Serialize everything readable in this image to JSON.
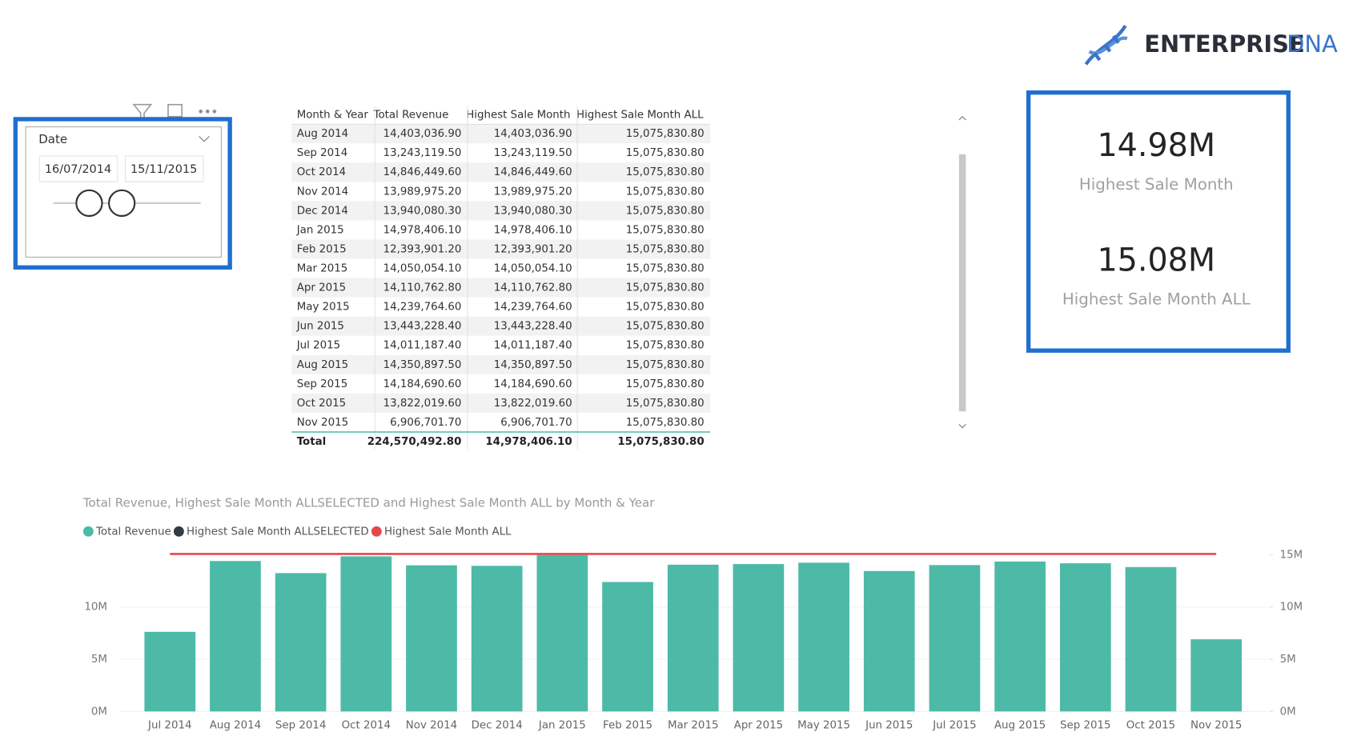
{
  "logo": {
    "word1": "ENTERPRISE",
    "word2": "DNA"
  },
  "slicer": {
    "title": "Date",
    "start": "16/07/2014",
    "end": "15/11/2015"
  },
  "table": {
    "columns": [
      "Month & Year",
      "Total Revenue",
      "Highest Sale Month",
      "Highest Sale Month ALL"
    ],
    "rows": [
      [
        "Aug 2014",
        "14,403,036.90",
        "14,403,036.90",
        "15,075,830.80"
      ],
      [
        "Sep 2014",
        "13,243,119.50",
        "13,243,119.50",
        "15,075,830.80"
      ],
      [
        "Oct 2014",
        "14,846,449.60",
        "14,846,449.60",
        "15,075,830.80"
      ],
      [
        "Nov 2014",
        "13,989,975.20",
        "13,989,975.20",
        "15,075,830.80"
      ],
      [
        "Dec 2014",
        "13,940,080.30",
        "13,940,080.30",
        "15,075,830.80"
      ],
      [
        "Jan 2015",
        "14,978,406.10",
        "14,978,406.10",
        "15,075,830.80"
      ],
      [
        "Feb 2015",
        "12,393,901.20",
        "12,393,901.20",
        "15,075,830.80"
      ],
      [
        "Mar 2015",
        "14,050,054.10",
        "14,050,054.10",
        "15,075,830.80"
      ],
      [
        "Apr 2015",
        "14,110,762.80",
        "14,110,762.80",
        "15,075,830.80"
      ],
      [
        "May 2015",
        "14,239,764.60",
        "14,239,764.60",
        "15,075,830.80"
      ],
      [
        "Jun 2015",
        "13,443,228.40",
        "13,443,228.40",
        "15,075,830.80"
      ],
      [
        "Jul 2015",
        "14,011,187.40",
        "14,011,187.40",
        "15,075,830.80"
      ],
      [
        "Aug 2015",
        "14,350,897.50",
        "14,350,897.50",
        "15,075,830.80"
      ],
      [
        "Sep 2015",
        "14,184,690.60",
        "14,184,690.60",
        "15,075,830.80"
      ],
      [
        "Oct 2015",
        "13,822,019.60",
        "13,822,019.60",
        "15,075,830.80"
      ],
      [
        "Nov 2015",
        "6,906,701.70",
        "6,906,701.70",
        "15,075,830.80"
      ]
    ],
    "total": [
      "Total",
      "224,570,492.80",
      "14,978,406.10",
      "15,075,830.80"
    ]
  },
  "cards": [
    {
      "value": "14.98M",
      "label": "Highest Sale Month"
    },
    {
      "value": "15.08M",
      "label": "Highest Sale Month ALL"
    }
  ],
  "chart_data": {
    "type": "bar",
    "title": "Total Revenue, Highest Sale Month ALLSELECTED and Highest Sale Month ALL by Month & Year",
    "categories": [
      "Jul 2014",
      "Aug 2014",
      "Sep 2014",
      "Oct 2014",
      "Nov 2014",
      "Dec 2014",
      "Jan 2015",
      "Feb 2015",
      "Mar 2015",
      "Apr 2015",
      "May 2015",
      "Jun 2015",
      "Jul 2015",
      "Aug 2015",
      "Sep 2015",
      "Oct 2015",
      "Nov 2015"
    ],
    "series": [
      {
        "name": "Total Revenue",
        "color": "#4dbaa8",
        "kind": "bar",
        "values": [
          7620000,
          14403036.9,
          13243119.5,
          14846449.6,
          13989975.2,
          13940080.3,
          14978406.1,
          12393901.2,
          14050054.1,
          14110762.8,
          14239764.6,
          13443228.4,
          14011187.4,
          14350897.5,
          14184690.6,
          13822019.6,
          6906701.7
        ]
      },
      {
        "name": "Highest Sale Month ALLSELECTED",
        "color": "#333a40",
        "kind": "line",
        "values": [
          null,
          null,
          null,
          null,
          null,
          null,
          null,
          null,
          null,
          null,
          null,
          null,
          null,
          null,
          null,
          null,
          null
        ]
      },
      {
        "name": "Highest Sale Month ALL",
        "color": "#e8474a",
        "kind": "line",
        "axis": "y2",
        "values": [
          15075830.8,
          15075830.8,
          15075830.8,
          15075830.8,
          15075830.8,
          15075830.8,
          15075830.8,
          15075830.8,
          15075830.8,
          15075830.8,
          15075830.8,
          15075830.8,
          15075830.8,
          15075830.8,
          15075830.8,
          15075830.8,
          15075830.8
        ]
      }
    ],
    "ylim": [
      0,
      15100000
    ],
    "yticks": [
      {
        "value": 0,
        "label": "0M"
      },
      {
        "value": 5000000,
        "label": "5M"
      },
      {
        "value": 10000000,
        "label": "10M"
      }
    ],
    "y2lim": [
      0,
      15100000
    ],
    "y2ticks": [
      {
        "value": 0,
        "label": "0M"
      },
      {
        "value": 5000000,
        "label": "5M"
      },
      {
        "value": 10000000,
        "label": "10M"
      },
      {
        "value": 15000000,
        "label": "15M"
      }
    ],
    "grid": true
  }
}
